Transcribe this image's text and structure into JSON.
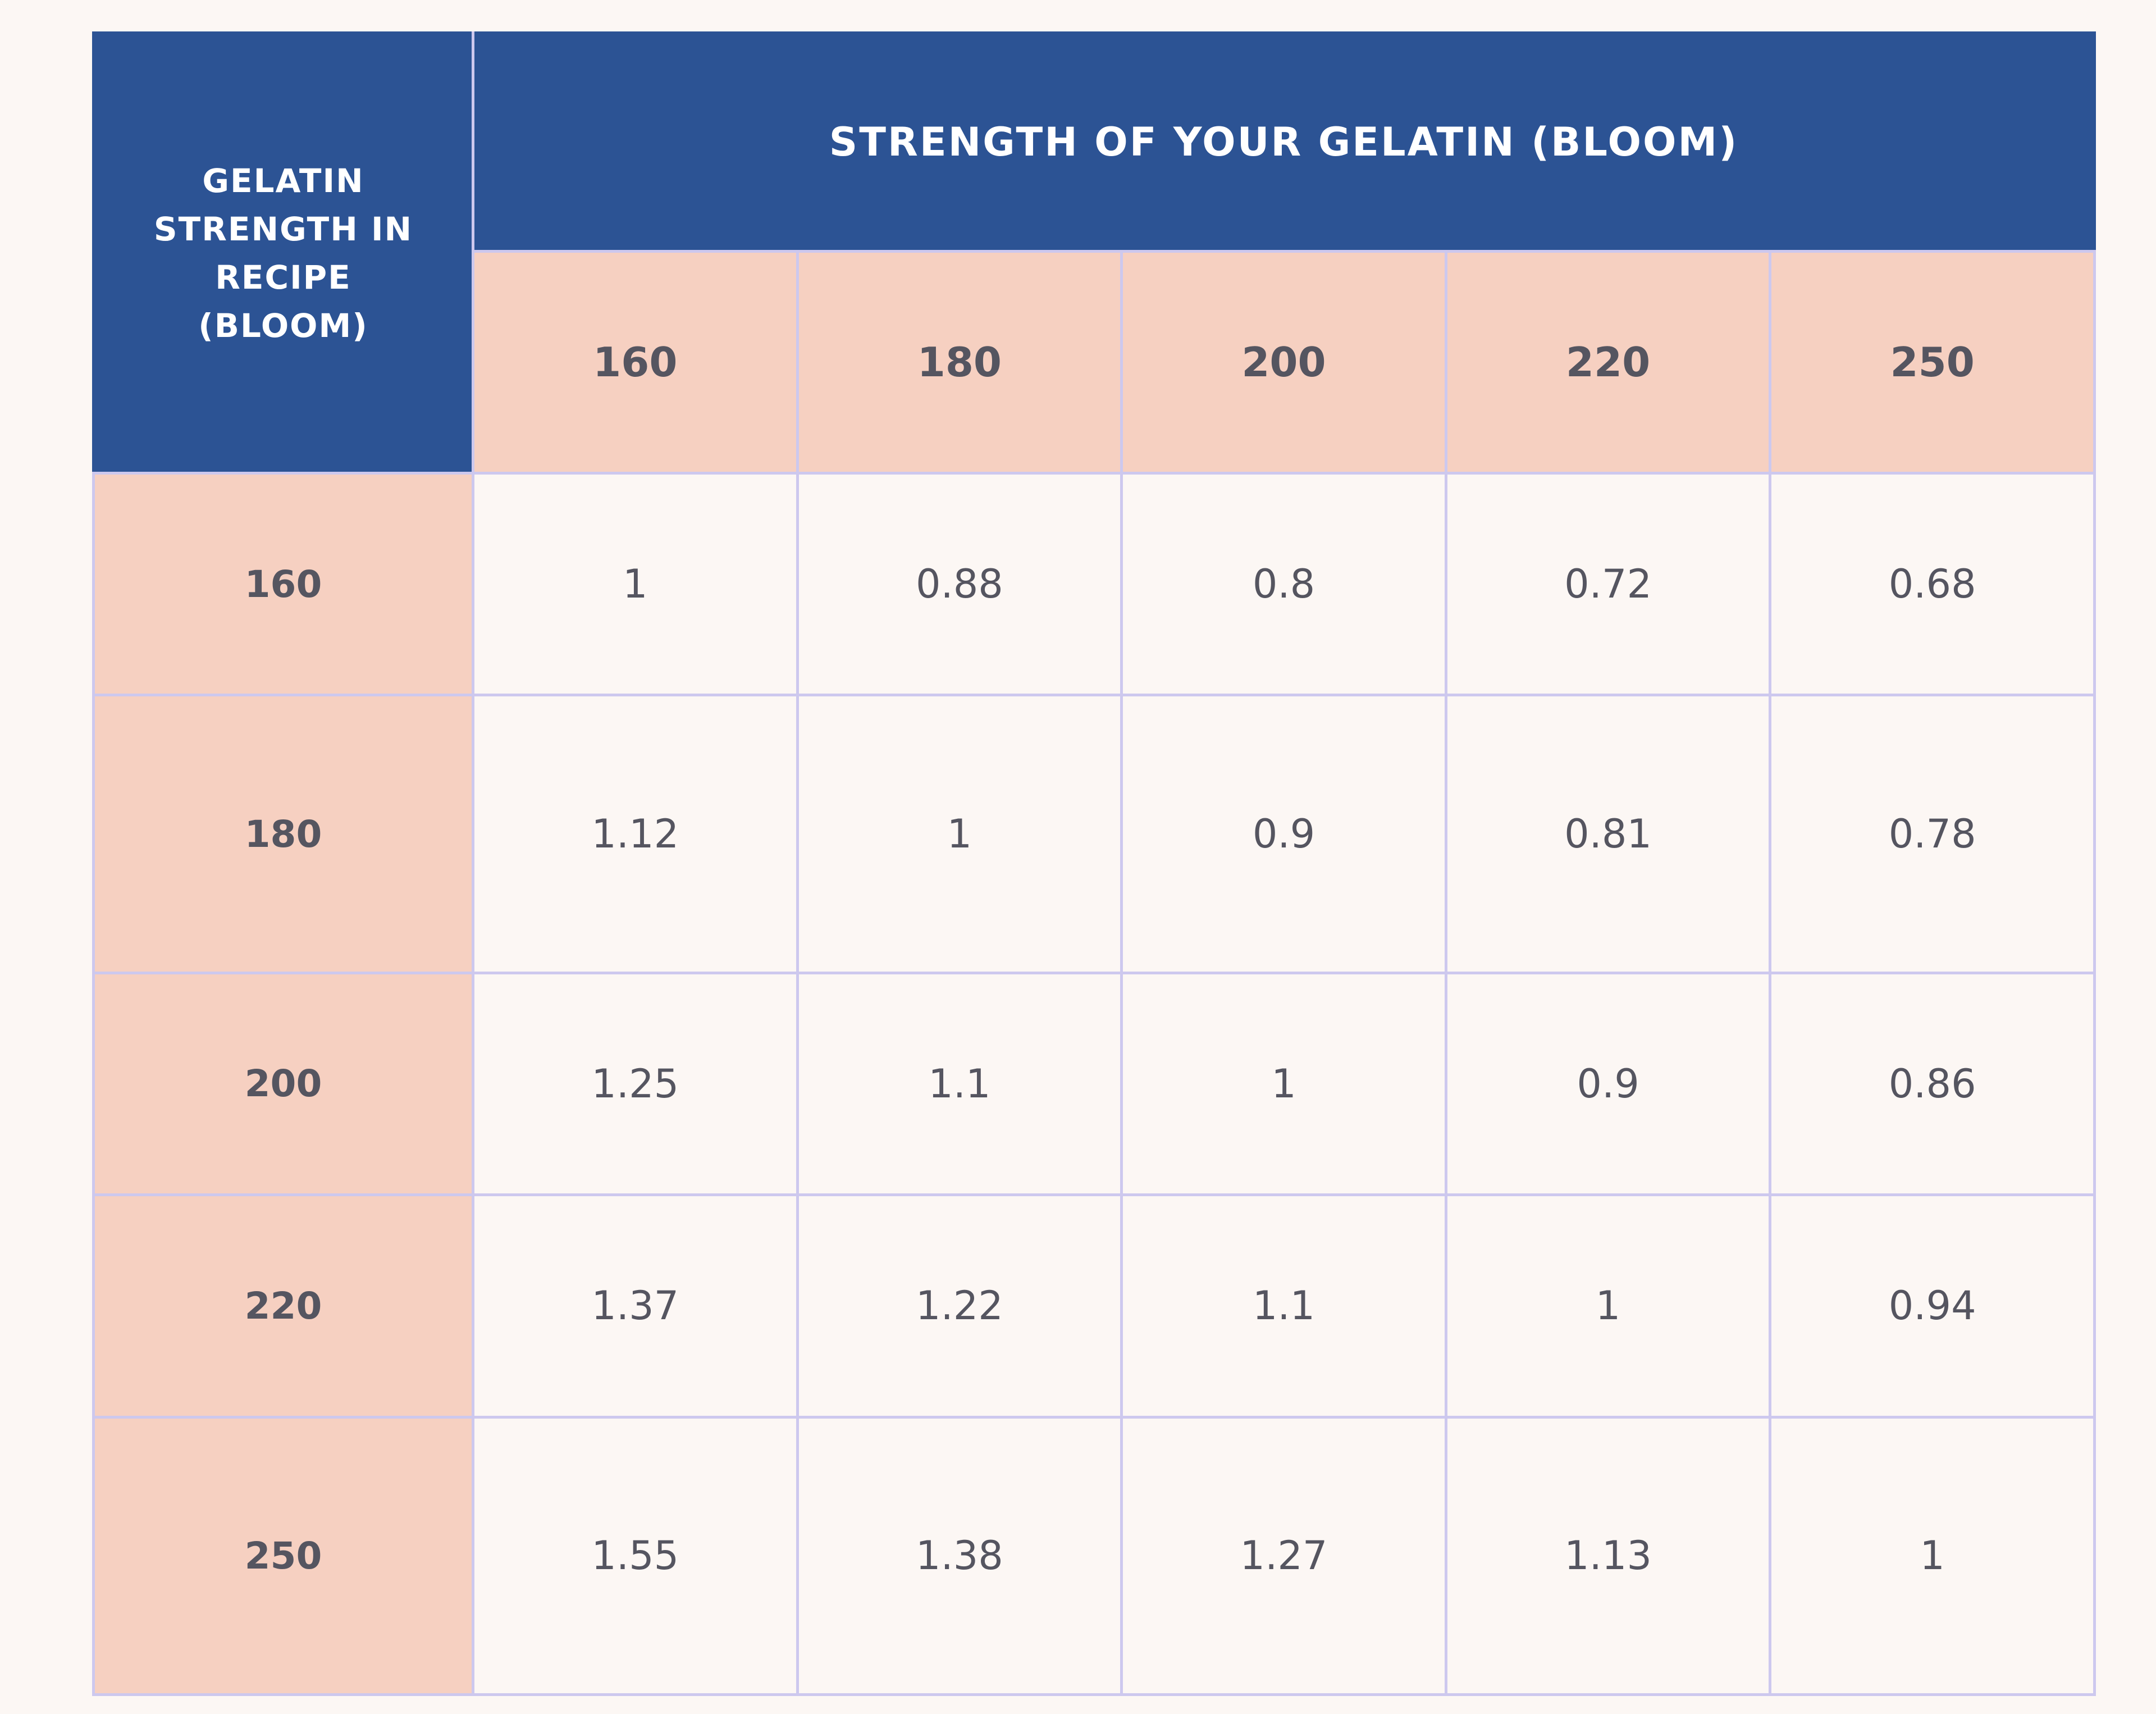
{
  "table": {
    "corner_header": "GELATIN STRENGTH IN RECIPE (BLOOM)",
    "main_header": "STRENGTH OF YOUR GELATIN (BLOOM)",
    "columns": [
      "160",
      "180",
      "200",
      "220",
      "250"
    ],
    "rows": [
      {
        "label": "160",
        "values": [
          "1",
          "0.88",
          "0.8",
          "0.72",
          "0.68"
        ]
      },
      {
        "label": "180",
        "values": [
          "1.12",
          "1",
          "0.9",
          "0.81",
          "0.78"
        ]
      },
      {
        "label": "200",
        "values": [
          "1.25",
          "1.1",
          "1",
          "0.9",
          "0.86"
        ]
      },
      {
        "label": "220",
        "values": [
          "1.37",
          "1.22",
          "1.1",
          "1",
          "0.94"
        ]
      },
      {
        "label": "250",
        "values": [
          "1.55",
          "1.38",
          "1.27",
          "1.13",
          "1"
        ]
      }
    ]
  },
  "colors": {
    "header_blue": "#2c5394",
    "header_peach": "#f6d0c1",
    "cell_background": "#fcf7f4",
    "grid_line": "#cdc8ee",
    "text": "#555560"
  }
}
